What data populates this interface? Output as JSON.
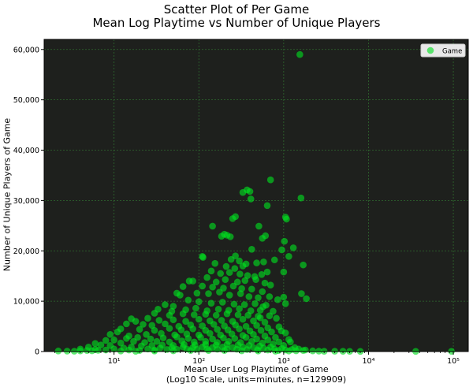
{
  "chart_data": {
    "type": "scatter",
    "title": "Scatter Plot of Per Game",
    "subtitle": "Mean Log Playtime vs Number of Unique Players",
    "xlabel": "Mean User Log Playtime of Game",
    "xlabel_note": "(Log10 Scale, units=minutes, n=129909)",
    "ylabel": "Number of Unique Players of Game",
    "xscale": "log",
    "xlim": [
      1.5,
      150000
    ],
    "ylim": [
      0,
      62000
    ],
    "x_ticks": [
      {
        "value": 10,
        "label": "10¹"
      },
      {
        "value": 100,
        "label": "10²"
      },
      {
        "value": 1000,
        "label": "10³"
      },
      {
        "value": 10000,
        "label": "10⁴"
      },
      {
        "value": 100000,
        "label": "10⁵"
      }
    ],
    "y_ticks": [
      {
        "value": 0,
        "label": "0"
      },
      {
        "value": 10000,
        "label": "10,000"
      },
      {
        "value": 20000,
        "label": "20,000"
      },
      {
        "value": 30000,
        "label": "30,000"
      },
      {
        "value": 40000,
        "label": "40,000"
      },
      {
        "value": 50000,
        "label": "50,000"
      },
      {
        "value": 60000,
        "label": "60,000"
      }
    ],
    "grid": true,
    "legend": {
      "position": "top-right",
      "entries": [
        "Game"
      ]
    },
    "colors": {
      "background": "#1e201d",
      "point": "#00e01e",
      "grid": "#2f6a2f"
    },
    "series": [
      {
        "name": "Game",
        "points": [
          [
            1550,
            59000
          ],
          [
            700,
            34100
          ],
          [
            1600,
            30500
          ],
          [
            370,
            32100
          ],
          [
            400,
            31800
          ],
          [
            330,
            31600
          ],
          [
            410,
            30300
          ],
          [
            1050,
            26700
          ],
          [
            1080,
            26300
          ],
          [
            640,
            29000
          ],
          [
            270,
            26800
          ],
          [
            250,
            26400
          ],
          [
            145,
            24900
          ],
          [
            510,
            24900
          ],
          [
            200,
            23300
          ],
          [
            185,
            22900
          ],
          [
            215,
            23100
          ],
          [
            235,
            22800
          ],
          [
            560,
            22500
          ],
          [
            610,
            23000
          ],
          [
            1020,
            21900
          ],
          [
            110,
            18900
          ],
          [
            112,
            18700
          ],
          [
            420,
            20300
          ],
          [
            950,
            20200
          ],
          [
            1300,
            20600
          ],
          [
            1700,
            17200
          ],
          [
            780,
            18200
          ],
          [
            270,
            19000
          ],
          [
            300,
            18000
          ],
          [
            240,
            18300
          ],
          [
            360,
            17400
          ],
          [
            155,
            17500
          ],
          [
            210,
            16900
          ],
          [
            265,
            16500
          ],
          [
            330,
            17000
          ],
          [
            480,
            17600
          ],
          [
            580,
            17800
          ],
          [
            140,
            16000
          ],
          [
            180,
            15500
          ],
          [
            230,
            15700
          ],
          [
            305,
            15400
          ],
          [
            375,
            15100
          ],
          [
            455,
            14900
          ],
          [
            550,
            15300
          ],
          [
            640,
            15800
          ],
          [
            1000,
            15800
          ],
          [
            1150,
            18900
          ],
          [
            85,
            14000
          ],
          [
            77,
            14000
          ],
          [
            125,
            14700
          ],
          [
            160,
            13800
          ],
          [
            205,
            14300
          ],
          [
            285,
            13800
          ],
          [
            350,
            14100
          ],
          [
            470,
            14300
          ],
          [
            600,
            13600
          ],
          [
            700,
            13200
          ],
          [
            110,
            13000
          ],
          [
            145,
            12800
          ],
          [
            195,
            12600
          ],
          [
            255,
            13000
          ],
          [
            320,
            12500
          ],
          [
            420,
            12400
          ],
          [
            560,
            11900
          ],
          [
            65,
            12900
          ],
          [
            55,
            11600
          ],
          [
            60,
            11200
          ],
          [
            95,
            11600
          ],
          [
            130,
            11500
          ],
          [
            175,
            11800
          ],
          [
            230,
            11200
          ],
          [
            310,
            11500
          ],
          [
            390,
            10900
          ],
          [
            500,
            10700
          ],
          [
            680,
            10900
          ],
          [
            850,
            10300
          ],
          [
            1000,
            10800
          ],
          [
            1620,
            11500
          ],
          [
            1850,
            10500
          ],
          [
            1050,
            9500
          ],
          [
            40,
            9300
          ],
          [
            50,
            9000
          ],
          [
            75,
            10200
          ],
          [
            100,
            9900
          ],
          [
            140,
            9600
          ],
          [
            190,
            9800
          ],
          [
            260,
            9400
          ],
          [
            345,
            9300
          ],
          [
            460,
            9500
          ],
          [
            620,
            9200
          ],
          [
            33,
            8400
          ],
          [
            48,
            8000
          ],
          [
            70,
            8300
          ],
          [
            92,
            8600
          ],
          [
            125,
            8100
          ],
          [
            170,
            8400
          ],
          [
            225,
            8200
          ],
          [
            300,
            8500
          ],
          [
            410,
            8100
          ],
          [
            530,
            8200
          ],
          [
            750,
            8000
          ],
          [
            570,
            8900
          ],
          [
            30,
            7600
          ],
          [
            45,
            7200
          ],
          [
            65,
            7500
          ],
          [
            88,
            7300
          ],
          [
            120,
            7400
          ],
          [
            160,
            7200
          ],
          [
            215,
            7500
          ],
          [
            290,
            7300
          ],
          [
            380,
            7200
          ],
          [
            500,
            7000
          ],
          [
            680,
            7100
          ],
          [
            820,
            6600
          ],
          [
            530,
            6700
          ],
          [
            16,
            6500
          ],
          [
            18,
            6000
          ],
          [
            14,
            5500
          ],
          [
            25,
            6600
          ],
          [
            34,
            6200
          ],
          [
            50,
            6300
          ],
          [
            70,
            6000
          ],
          [
            100,
            6400
          ],
          [
            135,
            6100
          ],
          [
            185,
            6200
          ],
          [
            250,
            6000
          ],
          [
            330,
            6400
          ],
          [
            440,
            6100
          ],
          [
            600,
            5800
          ],
          [
            12,
            4500
          ],
          [
            22,
            5400
          ],
          [
            28,
            5200
          ],
          [
            40,
            5500
          ],
          [
            58,
            5000
          ],
          [
            80,
            5300
          ],
          [
            110,
            5100
          ],
          [
            150,
            5400
          ],
          [
            200,
            5100
          ],
          [
            270,
            5300
          ],
          [
            360,
            5000
          ],
          [
            480,
            5200
          ],
          [
            650,
            4700
          ],
          [
            880,
            4900
          ],
          [
            940,
            4100
          ],
          [
            9,
            3400
          ],
          [
            11,
            3900
          ],
          [
            20,
            4400
          ],
          [
            30,
            4200
          ],
          [
            45,
            4600
          ],
          [
            62,
            4300
          ],
          [
            85,
            4500
          ],
          [
            120,
            4200
          ],
          [
            165,
            4400
          ],
          [
            220,
            4300
          ],
          [
            300,
            4500
          ],
          [
            400,
            4100
          ],
          [
            540,
            4200
          ],
          [
            720,
            3900
          ],
          [
            1050,
            3700
          ],
          [
            8,
            2200
          ],
          [
            15,
            3100
          ],
          [
            24,
            3400
          ],
          [
            36,
            3600
          ],
          [
            52,
            3300
          ],
          [
            72,
            3500
          ],
          [
            100,
            3300
          ],
          [
            135,
            3600
          ],
          [
            180,
            3300
          ],
          [
            245,
            3500
          ],
          [
            330,
            3200
          ],
          [
            440,
            3400
          ],
          [
            600,
            3100
          ],
          [
            800,
            2800
          ],
          [
            1150,
            2400
          ],
          [
            1200,
            1900
          ],
          [
            6,
            1600
          ],
          [
            5,
            900
          ],
          [
            7,
            1300
          ],
          [
            10,
            2300
          ],
          [
            14,
            2600
          ],
          [
            19,
            2800
          ],
          [
            27,
            2500
          ],
          [
            38,
            2700
          ],
          [
            55,
            2900
          ],
          [
            75,
            2600
          ],
          [
            105,
            2800
          ],
          [
            145,
            2500
          ],
          [
            195,
            2700
          ],
          [
            265,
            2600
          ],
          [
            360,
            2800
          ],
          [
            480,
            2500
          ],
          [
            650,
            2300
          ],
          [
            880,
            1900
          ],
          [
            4,
            500
          ],
          [
            6,
            400
          ],
          [
            9,
            1200
          ],
          [
            12,
            1700
          ],
          [
            17,
            2000
          ],
          [
            23,
            1800
          ],
          [
            32,
            2000
          ],
          [
            45,
            1900
          ],
          [
            63,
            2100
          ],
          [
            88,
            1900
          ],
          [
            120,
            2000
          ],
          [
            165,
            1800
          ],
          [
            225,
            2000
          ],
          [
            310,
            1800
          ],
          [
            420,
            2000
          ],
          [
            560,
            1700
          ],
          [
            750,
            1500
          ],
          [
            1000,
            1200
          ],
          [
            1350,
            800
          ],
          [
            1500,
            500
          ],
          [
            1800,
            300
          ],
          [
            2.2,
            100
          ],
          [
            2.8,
            80
          ],
          [
            3.4,
            60
          ],
          [
            4,
            120
          ],
          [
            4.8,
            200
          ],
          [
            5.5,
            150
          ],
          [
            6.5,
            250
          ],
          [
            8,
            300
          ],
          [
            10,
            500
          ],
          [
            13,
            700
          ],
          [
            16,
            900
          ],
          [
            21,
            1100
          ],
          [
            28,
            1200
          ],
          [
            37,
            1300
          ],
          [
            50,
            1200
          ],
          [
            67,
            1400
          ],
          [
            90,
            1300
          ],
          [
            120,
            1400
          ],
          [
            160,
            1300
          ],
          [
            215,
            1400
          ],
          [
            290,
            1300
          ],
          [
            390,
            1200
          ],
          [
            520,
            1100
          ],
          [
            700,
            900
          ],
          [
            950,
            600
          ],
          [
            1250,
            400
          ],
          [
            1700,
            200
          ],
          [
            2200,
            120
          ],
          [
            2600,
            80
          ],
          [
            4000,
            60
          ],
          [
            5000,
            50
          ],
          [
            6000,
            40
          ],
          [
            8000,
            30
          ],
          [
            36000,
            30
          ],
          [
            95000,
            40
          ],
          [
            15,
            300
          ],
          [
            25,
            500
          ],
          [
            35,
            700
          ],
          [
            48,
            800
          ],
          [
            65,
            900
          ],
          [
            85,
            800
          ],
          [
            110,
            900
          ],
          [
            145,
            800
          ],
          [
            190,
            900
          ],
          [
            250,
            800
          ],
          [
            330,
            900
          ],
          [
            440,
            800
          ],
          [
            580,
            700
          ],
          [
            780,
            500
          ],
          [
            1050,
            300
          ],
          [
            1400,
            150
          ],
          [
            3000,
            50
          ],
          [
            12,
            100
          ],
          [
            20,
            200
          ],
          [
            30,
            300
          ],
          [
            42,
            400
          ],
          [
            55,
            450
          ],
          [
            72,
            500
          ],
          [
            95,
            450
          ],
          [
            125,
            500
          ],
          [
            165,
            450
          ],
          [
            215,
            500
          ],
          [
            280,
            450
          ],
          [
            370,
            400
          ],
          [
            490,
            350
          ],
          [
            650,
            300
          ],
          [
            870,
            200
          ],
          [
            1150,
            100
          ],
          [
            18,
            50
          ],
          [
            30,
            100
          ],
          [
            50,
            150
          ],
          [
            80,
            200
          ],
          [
            130,
            200
          ],
          [
            200,
            200
          ],
          [
            320,
            150
          ],
          [
            500,
            100
          ],
          [
            800,
            60
          ]
        ]
      }
    ]
  }
}
